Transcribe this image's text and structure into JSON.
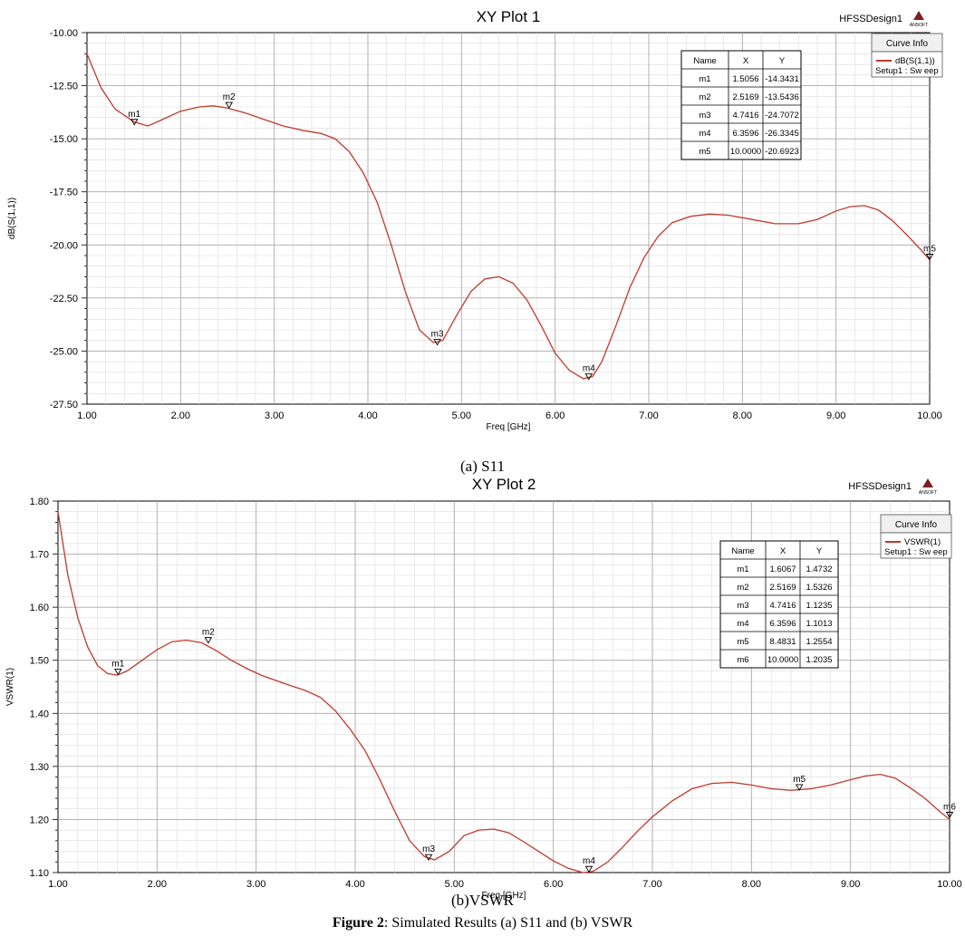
{
  "figure": {
    "caption_a": "(a)  S11",
    "caption_b": "(b)VSWR",
    "figure_label": "Figure 2",
    "figure_text": ": Simulated Results (a) S11 and (b) VSWR"
  },
  "chart_data": [
    {
      "type": "line",
      "title": "XY Plot 1",
      "design": "HFSSDesign1",
      "logo": "ANSOFT",
      "xlabel": "Freq [GHz]",
      "ylabel": "dB(S(1,1))",
      "xlim": [
        1.0,
        10.0
      ],
      "ylim": [
        -27.5,
        -10.0
      ],
      "xticks": [
        "1.00",
        "2.00",
        "3.00",
        "4.00",
        "5.00",
        "6.00",
        "7.00",
        "8.00",
        "9.00",
        "10.00"
      ],
      "yticks": [
        "-10.00",
        "-12.50",
        "-15.00",
        "-17.50",
        "-20.00",
        "-22.50",
        "-25.00",
        "-27.50"
      ],
      "grid": true,
      "curve_info": {
        "title": "Curve Info",
        "trace": "dB(S(1,1))",
        "setup": "Setup1 : Sw eep",
        "color": "#c0392b"
      },
      "series": [
        {
          "name": "dB(S(1,1))",
          "x": [
            1.0,
            1.15,
            1.3,
            1.5,
            1.65,
            1.8,
            2.0,
            2.2,
            2.35,
            2.5,
            2.7,
            2.9,
            3.1,
            3.3,
            3.5,
            3.65,
            3.8,
            3.95,
            4.1,
            4.25,
            4.4,
            4.55,
            4.7,
            4.8,
            4.95,
            5.1,
            5.25,
            5.4,
            5.55,
            5.7,
            5.85,
            6.0,
            6.15,
            6.3,
            6.4,
            6.5,
            6.65,
            6.8,
            6.95,
            7.1,
            7.25,
            7.45,
            7.65,
            7.85,
            8.1,
            8.35,
            8.6,
            8.8,
            9.0,
            9.15,
            9.3,
            9.45,
            9.6,
            9.75,
            9.9,
            10.0
          ],
          "y": [
            -11.0,
            -12.6,
            -13.6,
            -14.2,
            -14.4,
            -14.1,
            -13.7,
            -13.5,
            -13.45,
            -13.55,
            -13.8,
            -14.1,
            -14.4,
            -14.6,
            -14.75,
            -15.0,
            -15.6,
            -16.6,
            -18.0,
            -20.0,
            -22.2,
            -24.0,
            -24.6,
            -24.5,
            -23.3,
            -22.2,
            -21.6,
            -21.5,
            -21.8,
            -22.6,
            -23.8,
            -25.1,
            -25.9,
            -26.3,
            -26.2,
            -25.5,
            -23.8,
            -22.0,
            -20.6,
            -19.6,
            -18.95,
            -18.65,
            -18.55,
            -18.6,
            -18.8,
            -19.0,
            -19.0,
            -18.8,
            -18.4,
            -18.2,
            -18.15,
            -18.35,
            -18.85,
            -19.5,
            -20.2,
            -20.7
          ]
        }
      ],
      "markers": [
        {
          "name": "m1",
          "x": 1.5056,
          "y": -14.3431,
          "label_x": "1.5056",
          "label_y": "-14.3431"
        },
        {
          "name": "m2",
          "x": 2.5169,
          "y": -13.5436,
          "label_x": "2.5169",
          "label_y": "-13.5436"
        },
        {
          "name": "m3",
          "x": 4.7416,
          "y": -24.7072,
          "label_x": "4.7416",
          "label_y": "-24.7072"
        },
        {
          "name": "m4",
          "x": 6.3596,
          "y": -26.3345,
          "label_x": "6.3596",
          "label_y": "-26.3345"
        },
        {
          "name": "m5",
          "x": 10.0,
          "y": -20.6923,
          "label_x": "10.0000",
          "label_y": "-20.6923"
        }
      ],
      "marker_table_headers": [
        "Name",
        "X",
        "Y"
      ]
    },
    {
      "type": "line",
      "title": "XY Plot 2",
      "design": "HFSSDesign1",
      "logo": "ANSOFT",
      "xlabel": "Freq [GHz]",
      "ylabel": "VSWR(1)",
      "xlim": [
        1.0,
        10.0
      ],
      "ylim": [
        1.1,
        1.8
      ],
      "xticks": [
        "1.00",
        "2.00",
        "3.00",
        "4.00",
        "5.00",
        "6.00",
        "7.00",
        "8.00",
        "9.00",
        "10.00"
      ],
      "yticks": [
        "1.80",
        "1.70",
        "1.60",
        "1.50",
        "1.40",
        "1.30",
        "1.20",
        "1.10"
      ],
      "grid": true,
      "curve_info": {
        "title": "Curve Info",
        "trace": "VSWR(1)",
        "setup": "Setup1 : Sw eep",
        "color": "#c0392b"
      },
      "series": [
        {
          "name": "VSWR(1)",
          "x": [
            1.0,
            1.1,
            1.2,
            1.3,
            1.4,
            1.5,
            1.6,
            1.7,
            1.85,
            2.0,
            2.15,
            2.3,
            2.45,
            2.6,
            2.75,
            2.9,
            3.05,
            3.2,
            3.35,
            3.5,
            3.65,
            3.8,
            3.95,
            4.1,
            4.25,
            4.4,
            4.55,
            4.7,
            4.8,
            4.95,
            5.1,
            5.25,
            5.4,
            5.55,
            5.7,
            5.85,
            6.0,
            6.15,
            6.3,
            6.4,
            6.55,
            6.7,
            6.85,
            7.0,
            7.2,
            7.4,
            7.6,
            7.8,
            8.0,
            8.2,
            8.4,
            8.6,
            8.8,
            9.0,
            9.15,
            9.3,
            9.45,
            9.6,
            9.75,
            9.9,
            10.0
          ],
          "y": [
            1.78,
            1.66,
            1.58,
            1.525,
            1.49,
            1.475,
            1.472,
            1.48,
            1.5,
            1.52,
            1.535,
            1.538,
            1.533,
            1.518,
            1.5,
            1.485,
            1.472,
            1.462,
            1.452,
            1.443,
            1.43,
            1.405,
            1.37,
            1.33,
            1.275,
            1.215,
            1.16,
            1.13,
            1.124,
            1.14,
            1.17,
            1.18,
            1.182,
            1.175,
            1.158,
            1.14,
            1.122,
            1.108,
            1.1,
            1.102,
            1.12,
            1.148,
            1.178,
            1.205,
            1.235,
            1.258,
            1.268,
            1.27,
            1.265,
            1.258,
            1.255,
            1.258,
            1.265,
            1.275,
            1.282,
            1.285,
            1.278,
            1.26,
            1.24,
            1.215,
            1.2
          ]
        }
      ],
      "markers": [
        {
          "name": "m1",
          "x": 1.6067,
          "y": 1.4732,
          "label_x": "1.6067",
          "label_y": "1.4732"
        },
        {
          "name": "m2",
          "x": 2.5169,
          "y": 1.5326,
          "label_x": "2.5169",
          "label_y": "1.5326"
        },
        {
          "name": "m3",
          "x": 4.7416,
          "y": 1.1235,
          "label_x": "4.7416",
          "label_y": "1.1235"
        },
        {
          "name": "m4",
          "x": 6.3596,
          "y": 1.1013,
          "label_x": "6.3596",
          "label_y": "1.1013"
        },
        {
          "name": "m5",
          "x": 8.4831,
          "y": 1.2554,
          "label_x": "8.4831",
          "label_y": "1.2554"
        },
        {
          "name": "m6",
          "x": 10.0,
          "y": 1.2035,
          "label_x": "10.0000",
          "label_y": "1.2035"
        }
      ],
      "marker_table_headers": [
        "Name",
        "X",
        "Y"
      ]
    }
  ]
}
